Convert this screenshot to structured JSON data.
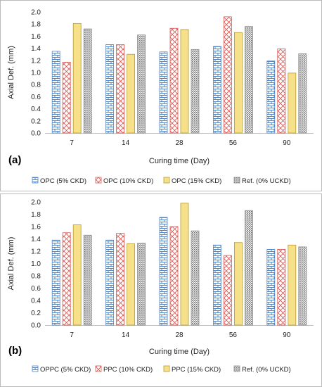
{
  "chart_data": [
    {
      "type": "bar",
      "panel_label": "(a)",
      "xlabel": "Curing time (Day)",
      "ylabel": "Axial Def. (mm)",
      "ylim": [
        0,
        2.0
      ],
      "ytick_step": 0.2,
      "categories": [
        "7",
        "14",
        "28",
        "56",
        "90"
      ],
      "legend_position": "bottom",
      "series": [
        {
          "name": "OPC (5% CKD)",
          "pattern": "brick",
          "color": "#4f86c6",
          "values": [
            1.35,
            1.46,
            1.34,
            1.43,
            1.19
          ]
        },
        {
          "name": "OPC (10% CKD)",
          "pattern": "cross",
          "color": "#d9534f",
          "values": [
            1.17,
            1.46,
            1.73,
            1.92,
            1.39
          ]
        },
        {
          "name": "OPC (15% CKD)",
          "pattern": "solid",
          "color": "#f6e08a",
          "values": [
            1.81,
            1.3,
            1.71,
            1.66,
            0.99
          ]
        },
        {
          "name": "Ref. (0% UCKD)",
          "pattern": "dots",
          "color": "#8a8a8a",
          "values": [
            1.72,
            1.62,
            1.38,
            1.76,
            1.31
          ]
        }
      ]
    },
    {
      "type": "bar",
      "panel_label": "(b)",
      "xlabel": "Curing time (Day)",
      "ylabel": "Axial Def. (mm)",
      "ylim": [
        0,
        2.0
      ],
      "ytick_step": 0.2,
      "categories": [
        "7",
        "14",
        "28",
        "56",
        "90"
      ],
      "legend_position": "bottom",
      "series": [
        {
          "name": "OPPC (5% CKD)",
          "pattern": "brick",
          "color": "#4f86c6",
          "values": [
            1.38,
            1.38,
            1.75,
            1.3,
            1.23
          ]
        },
        {
          "name": "PPC (10% CKD)",
          "pattern": "cross",
          "color": "#d9534f",
          "values": [
            1.5,
            1.49,
            1.6,
            1.13,
            1.23
          ]
        },
        {
          "name": "PPC (15% CKD)",
          "pattern": "solid",
          "color": "#f6e08a",
          "values": [
            1.63,
            1.32,
            1.98,
            1.34,
            1.3
          ]
        },
        {
          "name": "Ref. (0% UCKD)",
          "pattern": "dots",
          "color": "#8a8a8a",
          "values": [
            1.46,
            1.33,
            1.53,
            1.86,
            1.27
          ]
        }
      ]
    }
  ]
}
